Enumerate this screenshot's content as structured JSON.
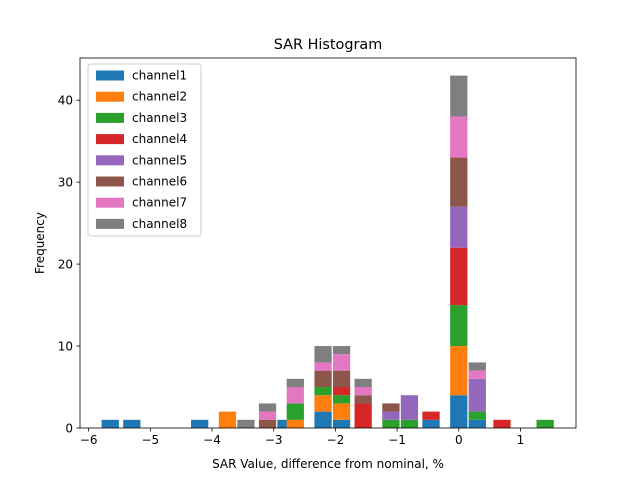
{
  "chart_data": {
    "type": "bar",
    "stacked": true,
    "title": "SAR Histogram",
    "xlabel": "SAR Value, difference from nominal, %",
    "ylabel": "Frequency",
    "xlim": [
      -6.14,
      1.9
    ],
    "ylim": [
      0,
      45.15
    ],
    "bar_width": 0.28,
    "x_ticks": [
      -6,
      -5,
      -4,
      -3,
      -2,
      -1,
      0,
      1
    ],
    "x_tick_labels": [
      "−6",
      "−5",
      "−4",
      "−3",
      "−2",
      "−1",
      "0",
      "1"
    ],
    "y_ticks": [
      0,
      10,
      20,
      30,
      40
    ],
    "y_tick_labels": [
      "0",
      "10",
      "20",
      "30",
      "40"
    ],
    "legend_position": "top-left",
    "series": [
      {
        "name": "channel1",
        "color": "#1f77b4",
        "data": [
          [
            -5.65,
            1
          ],
          [
            -5.3,
            1
          ],
          [
            -4.2,
            1
          ],
          [
            -2.8,
            1
          ],
          [
            -2.2,
            2
          ],
          [
            -1.9,
            1
          ],
          [
            -0.8,
            0
          ],
          [
            -0.45,
            1
          ],
          [
            0,
            4
          ],
          [
            0.3,
            1
          ]
        ]
      },
      {
        "name": "channel2",
        "color": "#ff7f0e",
        "data": [
          [
            -3.75,
            2
          ],
          [
            -2.65,
            1
          ],
          [
            -2.2,
            2
          ],
          [
            -1.9,
            2
          ],
          [
            0,
            6
          ]
        ]
      },
      {
        "name": "channel3",
        "color": "#2ca02c",
        "data": [
          [
            -2.65,
            2
          ],
          [
            -2.2,
            1
          ],
          [
            -1.9,
            1
          ],
          [
            -1.1,
            1
          ],
          [
            -0.8,
            1
          ],
          [
            0,
            5
          ],
          [
            0.3,
            1
          ],
          [
            1.4,
            1
          ]
        ]
      },
      {
        "name": "channel4",
        "color": "#d62728",
        "data": [
          [
            -1.9,
            1
          ],
          [
            -1.55,
            3
          ],
          [
            -0.45,
            1
          ],
          [
            0,
            7
          ],
          [
            0.7,
            1
          ]
        ]
      },
      {
        "name": "channel5",
        "color": "#9467bd",
        "data": [
          [
            -1.1,
            1
          ],
          [
            -0.8,
            3
          ],
          [
            0,
            5
          ],
          [
            0.3,
            4
          ]
        ]
      },
      {
        "name": "channel6",
        "color": "#8c564b",
        "data": [
          [
            -3.1,
            1
          ],
          [
            -2.2,
            2
          ],
          [
            -1.9,
            2
          ],
          [
            -1.55,
            1
          ],
          [
            -1.1,
            1
          ],
          [
            0,
            6
          ]
        ]
      },
      {
        "name": "channel7",
        "color": "#e377c2",
        "data": [
          [
            -3.1,
            1
          ],
          [
            -2.65,
            2
          ],
          [
            -2.2,
            1
          ],
          [
            -1.9,
            2
          ],
          [
            -1.55,
            1
          ],
          [
            0,
            5
          ],
          [
            0.3,
            1
          ]
        ]
      },
      {
        "name": "channel8",
        "color": "#7f7f7f",
        "data": [
          [
            -3.45,
            1
          ],
          [
            -3.1,
            1
          ],
          [
            -2.65,
            1
          ],
          [
            -2.2,
            2
          ],
          [
            -1.9,
            1
          ],
          [
            -1.55,
            1
          ],
          [
            0,
            5
          ],
          [
            0.3,
            1
          ]
        ]
      }
    ]
  }
}
